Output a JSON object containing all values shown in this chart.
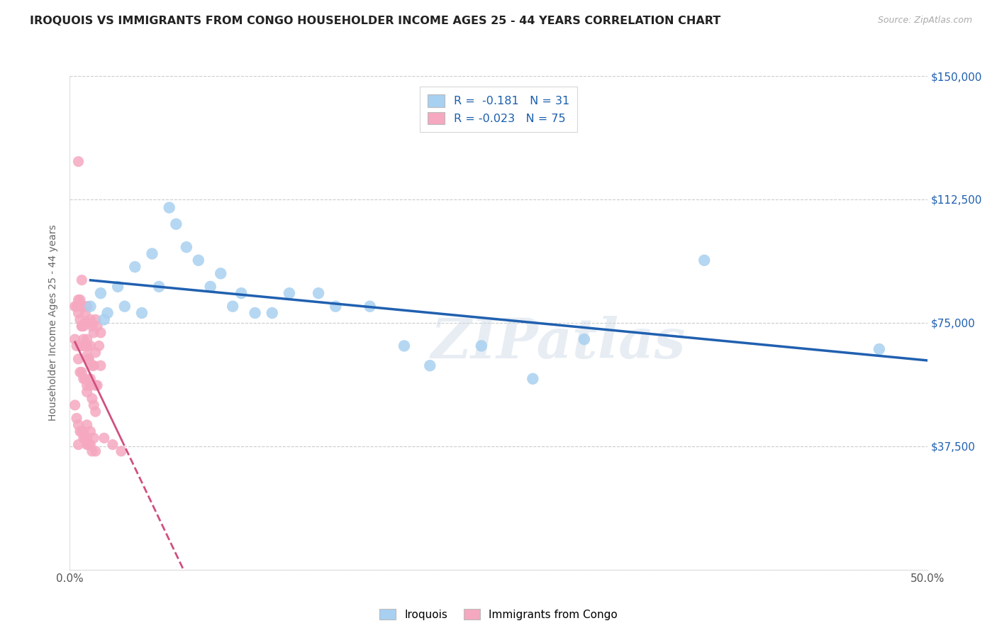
{
  "title": "IROQUOIS VS IMMIGRANTS FROM CONGO HOUSEHOLDER INCOME AGES 25 - 44 YEARS CORRELATION CHART",
  "source": "Source: ZipAtlas.com",
  "ylabel": "Householder Income Ages 25 - 44 years",
  "xlim": [
    0,
    0.5
  ],
  "ylim": [
    0,
    150000
  ],
  "xticks": [
    0.0,
    0.05,
    0.1,
    0.15,
    0.2,
    0.25,
    0.3,
    0.35,
    0.4,
    0.45,
    0.5
  ],
  "yticks": [
    0,
    37500,
    75000,
    112500,
    150000
  ],
  "yticklabels_right": [
    "",
    "$37,500",
    "$75,000",
    "$112,500",
    "$150,000"
  ],
  "blue_R": "-0.181",
  "blue_N": "31",
  "pink_R": "-0.023",
  "pink_N": "75",
  "legend_label_blue": "Iroquois",
  "legend_label_pink": "Immigrants from Congo",
  "blue_color": "#a8d0f0",
  "pink_color": "#f5a8c0",
  "blue_line_color": "#2060b0",
  "pink_line_color": "#d05080",
  "watermark": "ZIPatlas",
  "blue_scatter_x": [
    0.012,
    0.018,
    0.02,
    0.022,
    0.028,
    0.032,
    0.038,
    0.042,
    0.048,
    0.052,
    0.058,
    0.062,
    0.068,
    0.075,
    0.082,
    0.088,
    0.095,
    0.1,
    0.108,
    0.118,
    0.128,
    0.145,
    0.155,
    0.175,
    0.195,
    0.21,
    0.24,
    0.27,
    0.3,
    0.37,
    0.472
  ],
  "blue_scatter_y": [
    80000,
    84000,
    76000,
    78000,
    86000,
    80000,
    92000,
    78000,
    96000,
    86000,
    110000,
    105000,
    98000,
    94000,
    86000,
    90000,
    80000,
    84000,
    78000,
    78000,
    84000,
    84000,
    80000,
    80000,
    68000,
    62000,
    68000,
    58000,
    70000,
    94000,
    67000
  ],
  "pink_scatter_x": [
    0.003,
    0.004,
    0.005,
    0.005,
    0.006,
    0.006,
    0.007,
    0.007,
    0.007,
    0.008,
    0.008,
    0.008,
    0.009,
    0.009,
    0.009,
    0.01,
    0.01,
    0.01,
    0.011,
    0.011,
    0.012,
    0.012,
    0.012,
    0.013,
    0.013,
    0.014,
    0.014,
    0.015,
    0.015,
    0.015,
    0.016,
    0.016,
    0.017,
    0.018,
    0.018,
    0.003,
    0.004,
    0.005,
    0.006,
    0.007,
    0.007,
    0.008,
    0.009,
    0.01,
    0.01,
    0.011,
    0.012,
    0.013,
    0.014,
    0.015,
    0.003,
    0.004,
    0.005,
    0.006,
    0.007,
    0.008,
    0.009,
    0.01,
    0.011,
    0.012,
    0.013,
    0.005,
    0.006,
    0.007,
    0.008,
    0.01,
    0.012,
    0.014,
    0.005,
    0.01,
    0.015,
    0.02,
    0.025,
    0.03,
    0.01
  ],
  "pink_scatter_y": [
    80000,
    80000,
    82000,
    78000,
    82000,
    76000,
    80000,
    74000,
    88000,
    80000,
    74000,
    70000,
    78000,
    68000,
    75000,
    80000,
    70000,
    65000,
    75000,
    64000,
    76000,
    68000,
    58000,
    74000,
    62000,
    72000,
    62000,
    76000,
    66000,
    56000,
    74000,
    56000,
    68000,
    72000,
    62000,
    70000,
    68000,
    64000,
    60000,
    60000,
    74000,
    58000,
    58000,
    68000,
    56000,
    64000,
    56000,
    52000,
    50000,
    48000,
    50000,
    46000,
    44000,
    42000,
    42000,
    42000,
    40000,
    40000,
    38000,
    38000,
    36000,
    124000,
    68000,
    68000,
    40000,
    44000,
    42000,
    40000,
    38000,
    38000,
    36000,
    40000,
    38000,
    36000,
    54000
  ]
}
